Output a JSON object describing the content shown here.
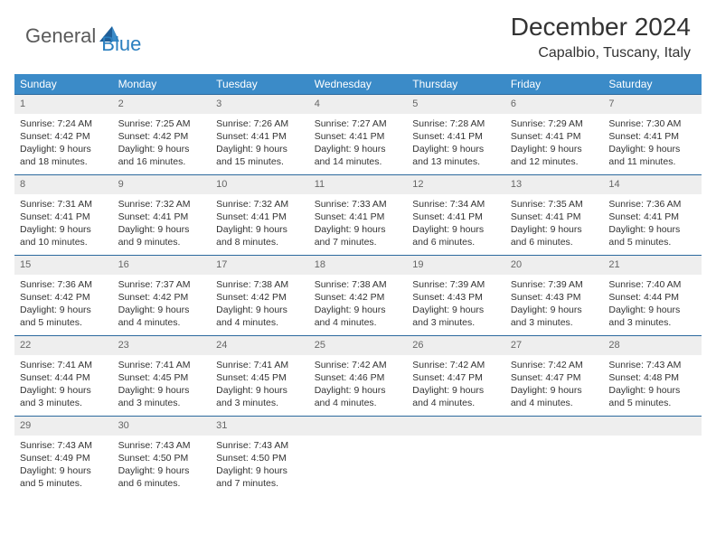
{
  "logo": {
    "word1": "General",
    "word2": "Blue"
  },
  "title": "December 2024",
  "location": "Capalbio, Tuscany, Italy",
  "colors": {
    "header_bg": "#3b8bc8",
    "header_text": "#ffffff",
    "row_divider": "#2c6a9e",
    "daynum_bg": "#eeeeee",
    "body_text": "#333333",
    "logo_blue": "#2a7fbf",
    "logo_gray": "#5a5a5a",
    "page_bg": "#ffffff"
  },
  "day_names": [
    "Sunday",
    "Monday",
    "Tuesday",
    "Wednesday",
    "Thursday",
    "Friday",
    "Saturday"
  ],
  "weeks": [
    [
      {
        "n": "1",
        "sr": "Sunrise: 7:24 AM",
        "ss": "Sunset: 4:42 PM",
        "d1": "Daylight: 9 hours",
        "d2": "and 18 minutes."
      },
      {
        "n": "2",
        "sr": "Sunrise: 7:25 AM",
        "ss": "Sunset: 4:42 PM",
        "d1": "Daylight: 9 hours",
        "d2": "and 16 minutes."
      },
      {
        "n": "3",
        "sr": "Sunrise: 7:26 AM",
        "ss": "Sunset: 4:41 PM",
        "d1": "Daylight: 9 hours",
        "d2": "and 15 minutes."
      },
      {
        "n": "4",
        "sr": "Sunrise: 7:27 AM",
        "ss": "Sunset: 4:41 PM",
        "d1": "Daylight: 9 hours",
        "d2": "and 14 minutes."
      },
      {
        "n": "5",
        "sr": "Sunrise: 7:28 AM",
        "ss": "Sunset: 4:41 PM",
        "d1": "Daylight: 9 hours",
        "d2": "and 13 minutes."
      },
      {
        "n": "6",
        "sr": "Sunrise: 7:29 AM",
        "ss": "Sunset: 4:41 PM",
        "d1": "Daylight: 9 hours",
        "d2": "and 12 minutes."
      },
      {
        "n": "7",
        "sr": "Sunrise: 7:30 AM",
        "ss": "Sunset: 4:41 PM",
        "d1": "Daylight: 9 hours",
        "d2": "and 11 minutes."
      }
    ],
    [
      {
        "n": "8",
        "sr": "Sunrise: 7:31 AM",
        "ss": "Sunset: 4:41 PM",
        "d1": "Daylight: 9 hours",
        "d2": "and 10 minutes."
      },
      {
        "n": "9",
        "sr": "Sunrise: 7:32 AM",
        "ss": "Sunset: 4:41 PM",
        "d1": "Daylight: 9 hours",
        "d2": "and 9 minutes."
      },
      {
        "n": "10",
        "sr": "Sunrise: 7:32 AM",
        "ss": "Sunset: 4:41 PM",
        "d1": "Daylight: 9 hours",
        "d2": "and 8 minutes."
      },
      {
        "n": "11",
        "sr": "Sunrise: 7:33 AM",
        "ss": "Sunset: 4:41 PM",
        "d1": "Daylight: 9 hours",
        "d2": "and 7 minutes."
      },
      {
        "n": "12",
        "sr": "Sunrise: 7:34 AM",
        "ss": "Sunset: 4:41 PM",
        "d1": "Daylight: 9 hours",
        "d2": "and 6 minutes."
      },
      {
        "n": "13",
        "sr": "Sunrise: 7:35 AM",
        "ss": "Sunset: 4:41 PM",
        "d1": "Daylight: 9 hours",
        "d2": "and 6 minutes."
      },
      {
        "n": "14",
        "sr": "Sunrise: 7:36 AM",
        "ss": "Sunset: 4:41 PM",
        "d1": "Daylight: 9 hours",
        "d2": "and 5 minutes."
      }
    ],
    [
      {
        "n": "15",
        "sr": "Sunrise: 7:36 AM",
        "ss": "Sunset: 4:42 PM",
        "d1": "Daylight: 9 hours",
        "d2": "and 5 minutes."
      },
      {
        "n": "16",
        "sr": "Sunrise: 7:37 AM",
        "ss": "Sunset: 4:42 PM",
        "d1": "Daylight: 9 hours",
        "d2": "and 4 minutes."
      },
      {
        "n": "17",
        "sr": "Sunrise: 7:38 AM",
        "ss": "Sunset: 4:42 PM",
        "d1": "Daylight: 9 hours",
        "d2": "and 4 minutes."
      },
      {
        "n": "18",
        "sr": "Sunrise: 7:38 AM",
        "ss": "Sunset: 4:42 PM",
        "d1": "Daylight: 9 hours",
        "d2": "and 4 minutes."
      },
      {
        "n": "19",
        "sr": "Sunrise: 7:39 AM",
        "ss": "Sunset: 4:43 PM",
        "d1": "Daylight: 9 hours",
        "d2": "and 3 minutes."
      },
      {
        "n": "20",
        "sr": "Sunrise: 7:39 AM",
        "ss": "Sunset: 4:43 PM",
        "d1": "Daylight: 9 hours",
        "d2": "and 3 minutes."
      },
      {
        "n": "21",
        "sr": "Sunrise: 7:40 AM",
        "ss": "Sunset: 4:44 PM",
        "d1": "Daylight: 9 hours",
        "d2": "and 3 minutes."
      }
    ],
    [
      {
        "n": "22",
        "sr": "Sunrise: 7:41 AM",
        "ss": "Sunset: 4:44 PM",
        "d1": "Daylight: 9 hours",
        "d2": "and 3 minutes."
      },
      {
        "n": "23",
        "sr": "Sunrise: 7:41 AM",
        "ss": "Sunset: 4:45 PM",
        "d1": "Daylight: 9 hours",
        "d2": "and 3 minutes."
      },
      {
        "n": "24",
        "sr": "Sunrise: 7:41 AM",
        "ss": "Sunset: 4:45 PM",
        "d1": "Daylight: 9 hours",
        "d2": "and 3 minutes."
      },
      {
        "n": "25",
        "sr": "Sunrise: 7:42 AM",
        "ss": "Sunset: 4:46 PM",
        "d1": "Daylight: 9 hours",
        "d2": "and 4 minutes."
      },
      {
        "n": "26",
        "sr": "Sunrise: 7:42 AM",
        "ss": "Sunset: 4:47 PM",
        "d1": "Daylight: 9 hours",
        "d2": "and 4 minutes."
      },
      {
        "n": "27",
        "sr": "Sunrise: 7:42 AM",
        "ss": "Sunset: 4:47 PM",
        "d1": "Daylight: 9 hours",
        "d2": "and 4 minutes."
      },
      {
        "n": "28",
        "sr": "Sunrise: 7:43 AM",
        "ss": "Sunset: 4:48 PM",
        "d1": "Daylight: 9 hours",
        "d2": "and 5 minutes."
      }
    ],
    [
      {
        "n": "29",
        "sr": "Sunrise: 7:43 AM",
        "ss": "Sunset: 4:49 PM",
        "d1": "Daylight: 9 hours",
        "d2": "and 5 minutes."
      },
      {
        "n": "30",
        "sr": "Sunrise: 7:43 AM",
        "ss": "Sunset: 4:50 PM",
        "d1": "Daylight: 9 hours",
        "d2": "and 6 minutes."
      },
      {
        "n": "31",
        "sr": "Sunrise: 7:43 AM",
        "ss": "Sunset: 4:50 PM",
        "d1": "Daylight: 9 hours",
        "d2": "and 7 minutes."
      },
      null,
      null,
      null,
      null
    ]
  ]
}
